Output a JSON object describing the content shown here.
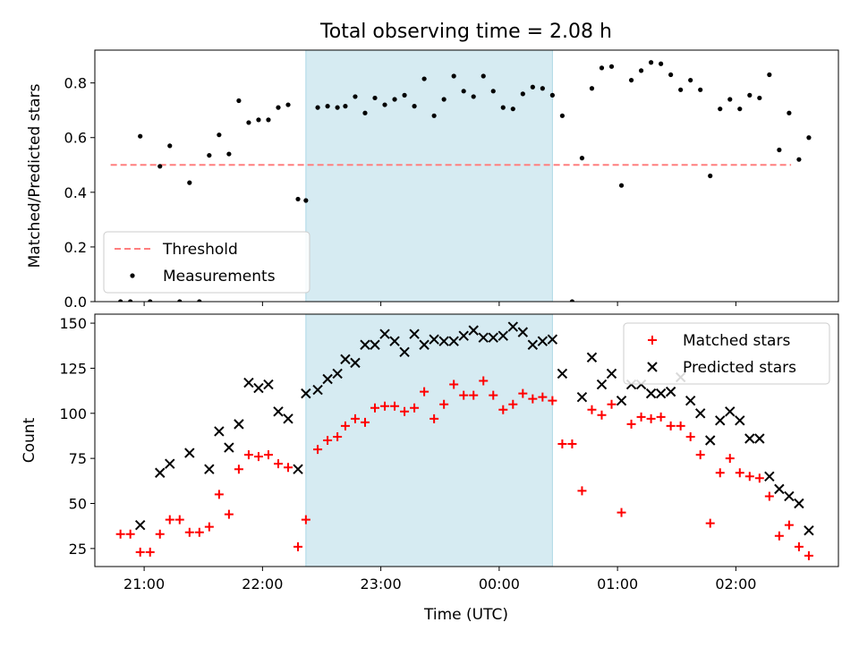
{
  "chart_data": {
    "title": "Total observing time = 2.08 h",
    "xlabel": "Time (UTC)",
    "x_ticks": [
      "21:00",
      "22:00",
      "23:00",
      "00:00",
      "01:00",
      "02:00"
    ],
    "highlight_span": {
      "start": "22:22",
      "end": "00:27",
      "color": "#add8e6"
    },
    "panels": [
      {
        "type": "scatter",
        "ylabel": "Matched/Predicted stars",
        "ylim": [
          0,
          0.92
        ],
        "y_ticks": [
          0.0,
          0.2,
          0.4,
          0.6,
          0.8
        ],
        "legend_position": "lower-left",
        "threshold": {
          "name": "Threshold",
          "value": 0.5,
          "x_start": "20:43",
          "x_end": "02:28",
          "color": "#ff7f7f"
        },
        "series": [
          {
            "name": "Measurements",
            "marker": "dot",
            "color": "#000000",
            "points": [
              [
                "20:48",
                0.0
              ],
              [
                "20:53",
                0.0
              ],
              [
                "20:58",
                0.605
              ],
              [
                "21:03",
                0.0
              ],
              [
                "21:08",
                0.495
              ],
              [
                "21:13",
                0.57
              ],
              [
                "21:18",
                0.0
              ],
              [
                "21:23",
                0.435
              ],
              [
                "21:28",
                0.0
              ],
              [
                "21:33",
                0.535
              ],
              [
                "21:38",
                0.61
              ],
              [
                "21:43",
                0.54
              ],
              [
                "21:48",
                0.735
              ],
              [
                "21:53",
                0.655
              ],
              [
                "21:58",
                0.665
              ],
              [
                "22:03",
                0.665
              ],
              [
                "22:08",
                0.71
              ],
              [
                "22:13",
                0.72
              ],
              [
                "22:18",
                0.375
              ],
              [
                "22:22",
                0.37
              ],
              [
                "22:28",
                0.71
              ],
              [
                "22:33",
                0.715
              ],
              [
                "22:38",
                0.71
              ],
              [
                "22:42",
                0.715
              ],
              [
                "22:47",
                0.75
              ],
              [
                "22:52",
                0.69
              ],
              [
                "22:57",
                0.745
              ],
              [
                "23:02",
                0.72
              ],
              [
                "23:07",
                0.74
              ],
              [
                "23:12",
                0.755
              ],
              [
                "23:17",
                0.715
              ],
              [
                "23:22",
                0.815
              ],
              [
                "23:27",
                0.68
              ],
              [
                "23:32",
                0.74
              ],
              [
                "23:37",
                0.825
              ],
              [
                "23:42",
                0.77
              ],
              [
                "23:47",
                0.75
              ],
              [
                "23:52",
                0.825
              ],
              [
                "23:57",
                0.77
              ],
              [
                "00:02",
                0.71
              ],
              [
                "00:07",
                0.705
              ],
              [
                "00:12",
                0.76
              ],
              [
                "00:17",
                0.785
              ],
              [
                "00:22",
                0.78
              ],
              [
                "00:27",
                0.755
              ],
              [
                "00:32",
                0.68
              ],
              [
                "00:37",
                0.0
              ],
              [
                "00:42",
                0.525
              ],
              [
                "00:47",
                0.78
              ],
              [
                "00:52",
                0.855
              ],
              [
                "00:57",
                0.86
              ],
              [
                "01:02",
                0.425
              ],
              [
                "01:07",
                0.81
              ],
              [
                "01:12",
                0.845
              ],
              [
                "01:17",
                0.875
              ],
              [
                "01:22",
                0.87
              ],
              [
                "01:27",
                0.83
              ],
              [
                "01:32",
                0.775
              ],
              [
                "01:37",
                0.81
              ],
              [
                "01:42",
                0.775
              ],
              [
                "01:47",
                0.46
              ],
              [
                "01:52",
                0.705
              ],
              [
                "01:57",
                0.74
              ],
              [
                "02:02",
                0.705
              ],
              [
                "02:07",
                0.755
              ],
              [
                "02:12",
                0.745
              ],
              [
                "02:17",
                0.83
              ],
              [
                "02:22",
                0.555
              ],
              [
                "02:27",
                0.69
              ],
              [
                "02:32",
                0.52
              ],
              [
                "02:37",
                0.6
              ]
            ]
          }
        ]
      },
      {
        "type": "scatter",
        "ylabel": "Count",
        "ylim": [
          15,
          155
        ],
        "y_ticks": [
          25,
          50,
          75,
          100,
          125,
          150
        ],
        "legend_position": "upper-right",
        "series": [
          {
            "name": "Matched stars",
            "marker": "plus",
            "color": "#ff0000",
            "points": [
              [
                "20:48",
                33
              ],
              [
                "20:53",
                33
              ],
              [
                "20:58",
                23
              ],
              [
                "21:03",
                23
              ],
              [
                "21:08",
                33
              ],
              [
                "21:13",
                41
              ],
              [
                "21:18",
                41
              ],
              [
                "21:23",
                34
              ],
              [
                "21:28",
                34
              ],
              [
                "21:33",
                37
              ],
              [
                "21:38",
                55
              ],
              [
                "21:43",
                44
              ],
              [
                "21:48",
                69
              ],
              [
                "21:53",
                77
              ],
              [
                "21:58",
                76
              ],
              [
                "22:03",
                77
              ],
              [
                "22:08",
                72
              ],
              [
                "22:13",
                70
              ],
              [
                "22:18",
                26
              ],
              [
                "22:22",
                41
              ],
              [
                "22:28",
                80
              ],
              [
                "22:33",
                85
              ],
              [
                "22:38",
                87
              ],
              [
                "22:42",
                93
              ],
              [
                "22:47",
                97
              ],
              [
                "22:52",
                95
              ],
              [
                "22:57",
                103
              ],
              [
                "23:02",
                104
              ],
              [
                "23:07",
                104
              ],
              [
                "23:12",
                101
              ],
              [
                "23:17",
                103
              ],
              [
                "23:22",
                112
              ],
              [
                "23:27",
                97
              ],
              [
                "23:32",
                105
              ],
              [
                "23:37",
                116
              ],
              [
                "23:42",
                110
              ],
              [
                "23:47",
                110
              ],
              [
                "23:52",
                118
              ],
              [
                "23:57",
                110
              ],
              [
                "00:02",
                102
              ],
              [
                "00:07",
                105
              ],
              [
                "00:12",
                111
              ],
              [
                "00:17",
                108
              ],
              [
                "00:22",
                109
              ],
              [
                "00:27",
                107
              ],
              [
                "00:32",
                83
              ],
              [
                "00:37",
                83
              ],
              [
                "00:42",
                57
              ],
              [
                "00:47",
                102
              ],
              [
                "00:52",
                99
              ],
              [
                "00:57",
                105
              ],
              [
                "01:02",
                45
              ],
              [
                "01:07",
                94
              ],
              [
                "01:12",
                98
              ],
              [
                "01:17",
                97
              ],
              [
                "01:22",
                98
              ],
              [
                "01:27",
                93
              ],
              [
                "01:32",
                93
              ],
              [
                "01:37",
                87
              ],
              [
                "01:42",
                77
              ],
              [
                "01:47",
                39
              ],
              [
                "01:52",
                67
              ],
              [
                "01:57",
                75
              ],
              [
                "02:02",
                67
              ],
              [
                "02:07",
                65
              ],
              [
                "02:12",
                64
              ],
              [
                "02:17",
                54
              ],
              [
                "02:22",
                32
              ],
              [
                "02:27",
                38
              ],
              [
                "02:32",
                26
              ],
              [
                "02:37",
                21
              ]
            ]
          },
          {
            "name": "Predicted stars",
            "marker": "x",
            "color": "#000000",
            "points": [
              [
                "20:58",
                38
              ],
              [
                "21:08",
                67
              ],
              [
                "21:13",
                72
              ],
              [
                "21:23",
                78
              ],
              [
                "21:33",
                69
              ],
              [
                "21:38",
                90
              ],
              [
                "21:43",
                81
              ],
              [
                "21:48",
                94
              ],
              [
                "21:53",
                117
              ],
              [
                "21:58",
                114
              ],
              [
                "22:03",
                116
              ],
              [
                "22:08",
                101
              ],
              [
                "22:13",
                97
              ],
              [
                "22:18",
                69
              ],
              [
                "22:22",
                111
              ],
              [
                "22:28",
                113
              ],
              [
                "22:33",
                119
              ],
              [
                "22:38",
                122
              ],
              [
                "22:42",
                130
              ],
              [
                "22:47",
                128
              ],
              [
                "22:52",
                138
              ],
              [
                "22:57",
                138
              ],
              [
                "23:02",
                144
              ],
              [
                "23:07",
                140
              ],
              [
                "23:12",
                134
              ],
              [
                "23:17",
                144
              ],
              [
                "23:22",
                138
              ],
              [
                "23:27",
                141
              ],
              [
                "23:32",
                140
              ],
              [
                "23:37",
                140
              ],
              [
                "23:42",
                143
              ],
              [
                "23:47",
                146
              ],
              [
                "23:52",
                142
              ],
              [
                "23:57",
                142
              ],
              [
                "00:02",
                143
              ],
              [
                "00:07",
                148
              ],
              [
                "00:12",
                145
              ],
              [
                "00:17",
                138
              ],
              [
                "00:22",
                140
              ],
              [
                "00:27",
                141
              ],
              [
                "00:32",
                122
              ],
              [
                "00:42",
                109
              ],
              [
                "00:47",
                131
              ],
              [
                "00:52",
                116
              ],
              [
                "00:57",
                122
              ],
              [
                "01:02",
                107
              ],
              [
                "01:07",
                116
              ],
              [
                "01:12",
                116
              ],
              [
                "01:17",
                111
              ],
              [
                "01:22",
                111
              ],
              [
                "01:27",
                112
              ],
              [
                "01:32",
                120
              ],
              [
                "01:37",
                107
              ],
              [
                "01:42",
                100
              ],
              [
                "01:47",
                85
              ],
              [
                "01:52",
                96
              ],
              [
                "01:57",
                101
              ],
              [
                "02:02",
                96
              ],
              [
                "02:07",
                86
              ],
              [
                "02:12",
                86
              ],
              [
                "02:17",
                65
              ],
              [
                "02:22",
                58
              ],
              [
                "02:27",
                54
              ],
              [
                "02:32",
                50
              ],
              [
                "02:37",
                35
              ]
            ]
          }
        ]
      }
    ]
  }
}
